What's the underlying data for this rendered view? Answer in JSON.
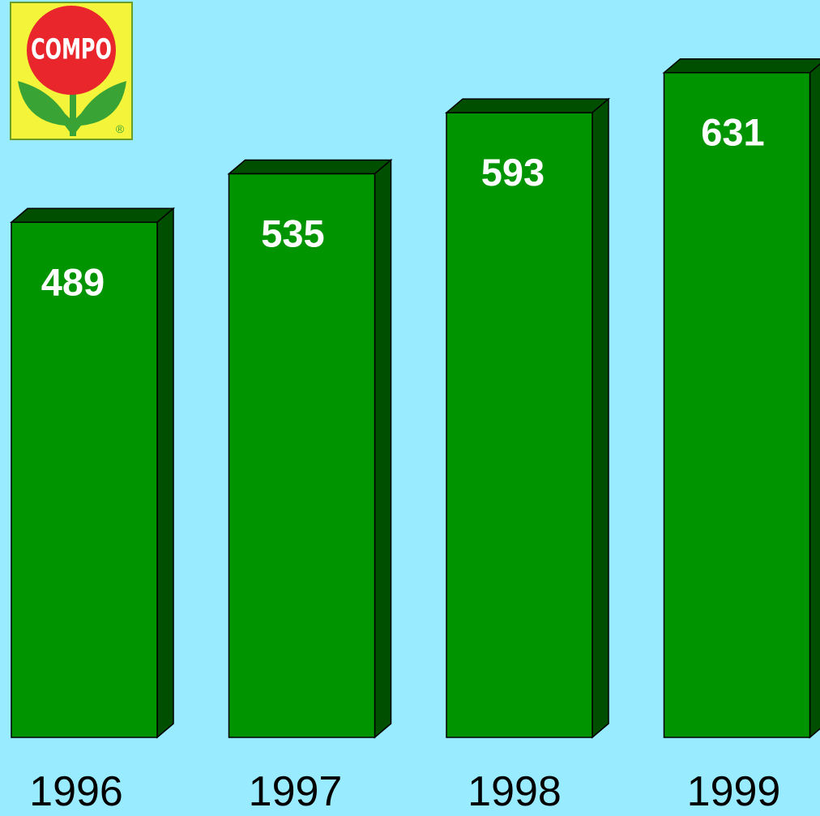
{
  "logo": {
    "text": "COMPO",
    "mark": "®"
  },
  "chart_data": {
    "type": "bar3d",
    "categories": [
      "1996",
      "1997",
      "1998",
      "1999"
    ],
    "values": [
      489,
      535,
      593,
      631
    ],
    "color": "#009400",
    "side_color": "#004f00"
  }
}
